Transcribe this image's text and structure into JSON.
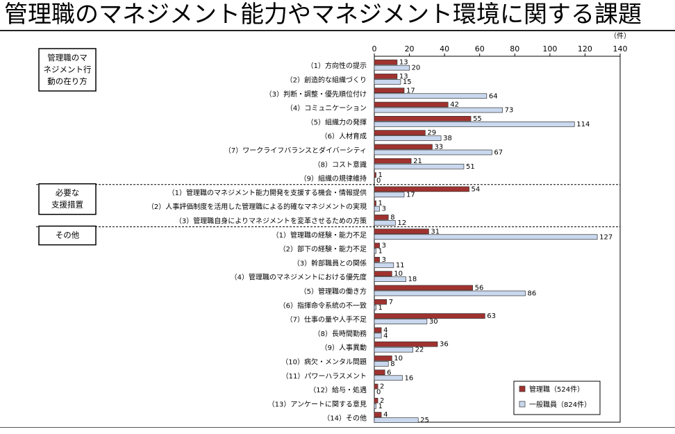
{
  "page": {
    "title": "管理職のマネジメント能力やマネジメント環境に関する課題"
  },
  "chart_data": {
    "type": "bar",
    "orientation": "horizontal",
    "unit": "（件）",
    "xlim": [
      0,
      140
    ],
    "x_ticks": [
      0,
      20,
      40,
      60,
      80,
      100,
      120,
      140
    ],
    "grid": false,
    "legend_position": "bottom-right",
    "series": [
      {
        "name": "管理職（524件）",
        "color": "#a0322f"
      },
      {
        "name": "一般職員（824件）",
        "color": "#c9d8ee"
      }
    ],
    "groups": [
      {
        "label": "管理職のマネジメント行動の在り方",
        "label_lines": [
          "管理職のマ",
          "ネジメント行",
          "動の在り方"
        ],
        "items": [
          {
            "label": "（1）方向性の提示",
            "values": [
              13,
              20
            ]
          },
          {
            "label": "（2）創造的な組織づくり",
            "values": [
              13,
              15
            ]
          },
          {
            "label": "（3）判断・調整・優先順位付け",
            "values": [
              17,
              64
            ]
          },
          {
            "label": "（4）コミュニケーション",
            "values": [
              42,
              73
            ]
          },
          {
            "label": "（5）組織力の発揮",
            "values": [
              55,
              114
            ]
          },
          {
            "label": "（6）人材育成",
            "values": [
              29,
              38
            ]
          },
          {
            "label": "（7）ワークライフバランスとダイバーシティ",
            "values": [
              33,
              67
            ]
          },
          {
            "label": "（8）コスト意識",
            "values": [
              21,
              51
            ]
          },
          {
            "label": "（9）組織の規律維持",
            "values": [
              1,
              0
            ]
          }
        ]
      },
      {
        "label": "必要な支援措置",
        "label_lines": [
          "必要な",
          "支援措置"
        ],
        "items": [
          {
            "label": "（1）管理職のマネジメント能力開発を支援する機会・情報提供",
            "values": [
              54,
              17
            ]
          },
          {
            "label": "（2）人事評価制度を活用した管理職による的確なマネジメントの実現",
            "values": [
              1,
              3
            ]
          },
          {
            "label": "（3）管理職自身によりマネジメントを変革させるための方策",
            "values": [
              8,
              12
            ]
          }
        ]
      },
      {
        "label": "その他",
        "label_lines": [
          "その他"
        ],
        "items": [
          {
            "label": "（1）管理職の経験・能力不足",
            "values": [
              31,
              127
            ]
          },
          {
            "label": "（2）部下の経験・能力不足",
            "values": [
              3,
              1
            ]
          },
          {
            "label": "（3）幹部職員との関係",
            "values": [
              3,
              11
            ]
          },
          {
            "label": "（4）管理職のマネジメントにおける優先度",
            "values": [
              10,
              18
            ]
          },
          {
            "label": "（5）管理職の働き方",
            "values": [
              56,
              86
            ]
          },
          {
            "label": "（6）指揮命令系統の不一致",
            "values": [
              7,
              1
            ]
          },
          {
            "label": "（7）仕事の量や人手不足",
            "values": [
              63,
              30
            ]
          },
          {
            "label": "（8）長時間勤務",
            "values": [
              4,
              4
            ]
          },
          {
            "label": "（9）人事異動",
            "values": [
              36,
              22
            ]
          },
          {
            "label": "（10）病欠・メンタル問題",
            "values": [
              10,
              8
            ]
          },
          {
            "label": "（11）パワーハラスメント",
            "values": [
              6,
              16
            ]
          },
          {
            "label": "（12）給与・処遇",
            "values": [
              2,
              0
            ]
          },
          {
            "label": "（13）アンケートに関する意見",
            "values": [
              2,
              1
            ]
          },
          {
            "label": "（14）その他",
            "values": [
              4,
              25
            ]
          }
        ]
      }
    ]
  }
}
